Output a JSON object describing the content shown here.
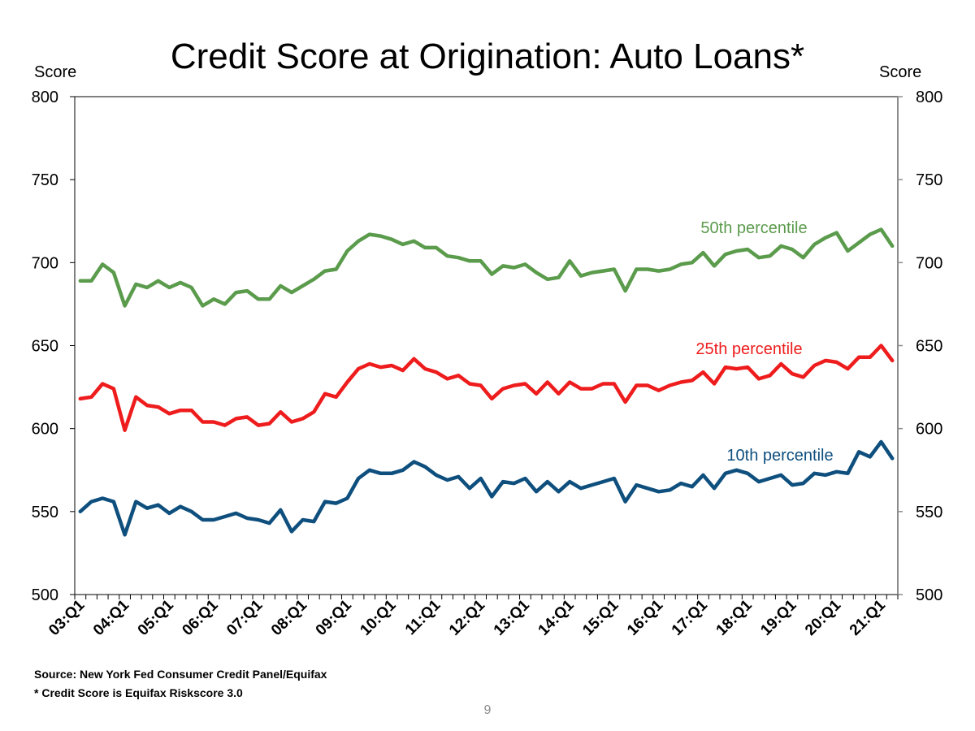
{
  "title": "Credit Score at Origination: Auto Loans*",
  "axis_unit_left": "Score",
  "axis_unit_right": "Score",
  "source_note": "Source: New York Fed Consumer Credit Panel/Equifax",
  "footnote": "* Credit Score is Equifax Riskscore 3.0",
  "page_number": "9",
  "chart_data": {
    "type": "line",
    "ylim": [
      500,
      800
    ],
    "y_ticks": [
      500,
      550,
      600,
      650,
      700,
      750,
      800
    ],
    "x_tick_labels": [
      "03:Q1",
      "04:Q1",
      "05:Q1",
      "06:Q1",
      "07:Q1",
      "08:Q1",
      "09:Q1",
      "10:Q1",
      "11:Q1",
      "12:Q1",
      "13:Q1",
      "14:Q1",
      "15:Q1",
      "16:Q1",
      "17:Q1",
      "18:Q1",
      "19:Q1",
      "20:Q1",
      "21:Q1"
    ],
    "x_start": "2003:Q1",
    "x_end": "2021:Q2",
    "series": [
      {
        "name": "50th percentile",
        "color": "#5b9b4c",
        "values": [
          689,
          689,
          699,
          694,
          674,
          687,
          685,
          689,
          685,
          688,
          685,
          674,
          678,
          675,
          682,
          683,
          678,
          678,
          686,
          682,
          686,
          690,
          695,
          696,
          707,
          713,
          717,
          716,
          714,
          711,
          713,
          709,
          709,
          704,
          703,
          701,
          701,
          693,
          698,
          697,
          699,
          694,
          690,
          691,
          701,
          692,
          694,
          695,
          696,
          683,
          696,
          696,
          695,
          696,
          699,
          700,
          706,
          698,
          705,
          707,
          708,
          703,
          704,
          710,
          708,
          703,
          711,
          715,
          718,
          707,
          712,
          717,
          720,
          710
        ]
      },
      {
        "name": "25th percentile",
        "color": "#ee1c1c",
        "values": [
          618,
          619,
          627,
          624,
          599,
          619,
          614,
          613,
          609,
          611,
          611,
          604,
          604,
          602,
          606,
          607,
          602,
          603,
          610,
          604,
          606,
          610,
          621,
          619,
          628,
          636,
          639,
          637,
          638,
          635,
          642,
          636,
          634,
          630,
          632,
          627,
          626,
          618,
          624,
          626,
          627,
          621,
          628,
          621,
          628,
          624,
          624,
          627,
          627,
          616,
          626,
          626,
          623,
          626,
          628,
          629,
          634,
          627,
          637,
          636,
          637,
          630,
          632,
          639,
          633,
          631,
          638,
          641,
          640,
          636,
          643,
          643,
          650,
          641
        ]
      },
      {
        "name": "10th percentile",
        "color": "#0e4f7e",
        "values": [
          550,
          556,
          558,
          556,
          536,
          556,
          552,
          554,
          549,
          553,
          550,
          545,
          545,
          547,
          549,
          546,
          545,
          543,
          551,
          538,
          545,
          544,
          556,
          555,
          558,
          570,
          575,
          573,
          573,
          575,
          580,
          577,
          572,
          569,
          571,
          564,
          570,
          559,
          568,
          567,
          570,
          562,
          568,
          562,
          568,
          564,
          566,
          568,
          570,
          556,
          566,
          564,
          562,
          563,
          567,
          565,
          572,
          564,
          573,
          575,
          573,
          568,
          570,
          572,
          566,
          567,
          573,
          572,
          574,
          573,
          586,
          583,
          592,
          582
        ]
      }
    ]
  }
}
